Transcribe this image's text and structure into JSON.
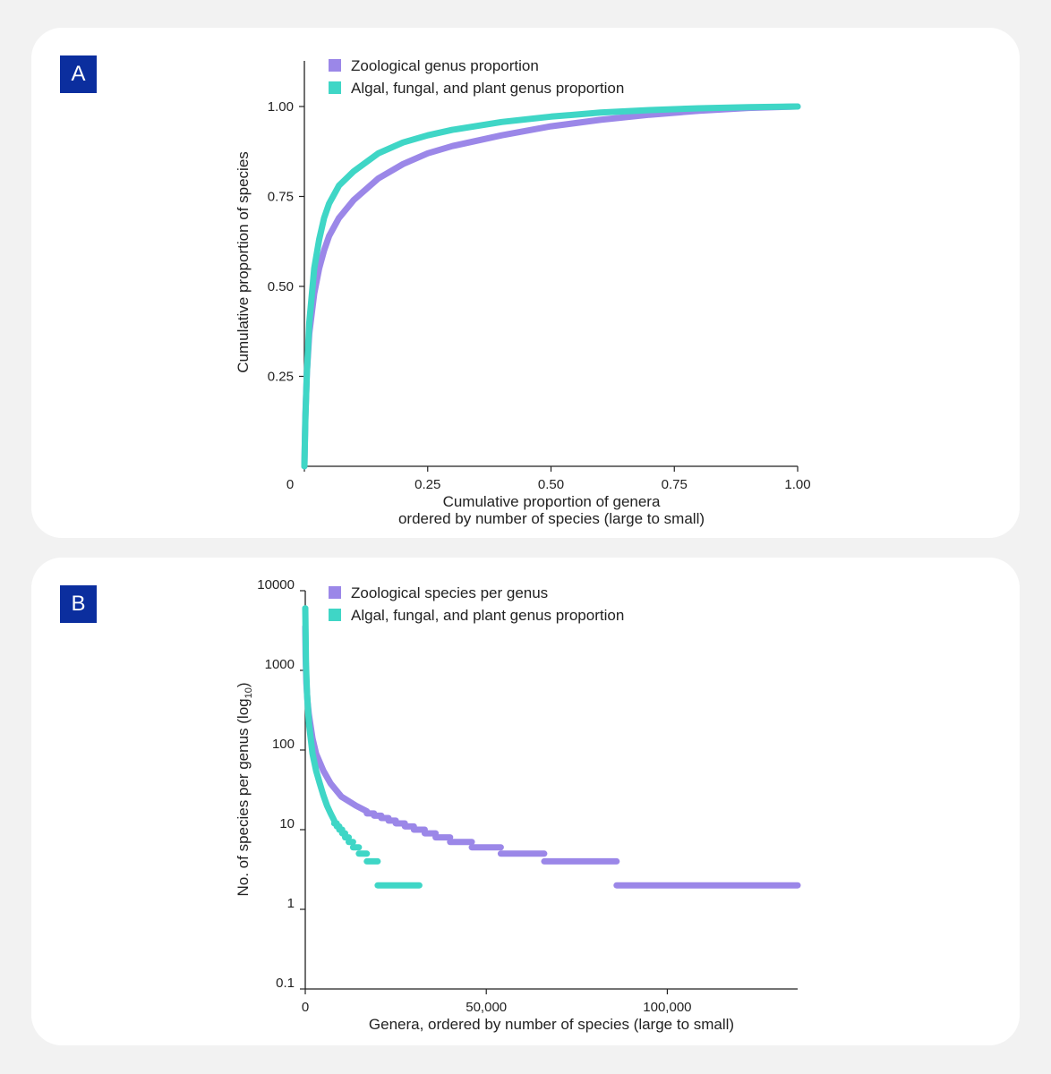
{
  "panels": {
    "a": {
      "label": "A"
    },
    "b": {
      "label": "B"
    }
  },
  "colors": {
    "zoological": "#9b87e8",
    "algal": "#3fd6c6",
    "badge": "#0b2e9e"
  },
  "chart_data": [
    {
      "type": "line",
      "panel": "A",
      "xlabel": "Cumulative proportion of genera",
      "xlabel_line2": "ordered by number of species (large to small)",
      "ylabel": "Cumulative proportion of species",
      "xlim": [
        0,
        1
      ],
      "ylim": [
        0,
        1.1
      ],
      "xticks": [
        0,
        0.25,
        0.5,
        0.75,
        1
      ],
      "xtick_labels": [
        "0",
        "0.25",
        "0.50",
        "0.75",
        "1.00"
      ],
      "yticks": [
        0.25,
        0.5,
        0.75,
        1
      ],
      "ytick_labels": [
        "0.25",
        "0.50",
        "0.75",
        "1.00"
      ],
      "legend_position": "top-left",
      "grid": false,
      "series": [
        {
          "name": "Zoological genus proportion",
          "color": "#9b87e8",
          "x": [
            0,
            0.002,
            0.005,
            0.01,
            0.02,
            0.03,
            0.04,
            0.05,
            0.07,
            0.1,
            0.15,
            0.2,
            0.25,
            0.3,
            0.4,
            0.5,
            0.6,
            0.7,
            0.8,
            0.9,
            1
          ],
          "y": [
            0,
            0.14,
            0.26,
            0.37,
            0.48,
            0.55,
            0.6,
            0.64,
            0.69,
            0.74,
            0.8,
            0.84,
            0.87,
            0.89,
            0.92,
            0.945,
            0.963,
            0.977,
            0.988,
            0.996,
            1
          ]
        },
        {
          "name": "Algal, fungal, and plant genus proportion",
          "color": "#3fd6c6",
          "x": [
            0,
            0.002,
            0.005,
            0.01,
            0.02,
            0.03,
            0.04,
            0.05,
            0.07,
            0.1,
            0.15,
            0.2,
            0.25,
            0.3,
            0.4,
            0.5,
            0.6,
            0.7,
            0.8,
            0.9,
            1
          ],
          "y": [
            0,
            0.13,
            0.26,
            0.4,
            0.55,
            0.63,
            0.69,
            0.73,
            0.78,
            0.82,
            0.87,
            0.9,
            0.92,
            0.935,
            0.957,
            0.972,
            0.983,
            0.99,
            0.995,
            0.998,
            1
          ]
        }
      ]
    },
    {
      "type": "scatter",
      "panel": "B",
      "xlabel": "Genera, ordered by number of species (large to small)",
      "ylabel": "No. of species per genus (log",
      "ylabel_sub": "10",
      "ylabel_end": ")",
      "y_scale": "log",
      "xlim": [
        0,
        136000
      ],
      "ylim": [
        0.1,
        10000
      ],
      "xticks": [
        0,
        50000,
        100000
      ],
      "xtick_labels": [
        "0",
        "50,000",
        "100,000"
      ],
      "yticks": [
        0.1,
        1,
        10,
        100,
        1000,
        10000
      ],
      "ytick_labels": [
        "0.1",
        "1",
        "10",
        "100",
        "1000",
        "10000"
      ],
      "legend_position": "top-left",
      "grid": false,
      "series": [
        {
          "name": "Zoological species per genus",
          "color": "#9b87e8",
          "curve": {
            "x": [
              0,
              100,
              300,
              600,
              1000,
              2000,
              3000,
              5000,
              7000,
              10000,
              14000,
              17000
            ],
            "y": [
              3500,
              1500,
              700,
              420,
              280,
              140,
              90,
              55,
              38,
              26,
              20,
              17
            ]
          },
          "steps": [
            {
              "y": 16,
              "x_start": 17000,
              "x_end": 19000
            },
            {
              "y": 15,
              "x_start": 19000,
              "x_end": 21000
            },
            {
              "y": 14,
              "x_start": 21000,
              "x_end": 23000
            },
            {
              "y": 13,
              "x_start": 23000,
              "x_end": 25000
            },
            {
              "y": 12,
              "x_start": 25000,
              "x_end": 27500
            },
            {
              "y": 11,
              "x_start": 27500,
              "x_end": 30000
            },
            {
              "y": 10,
              "x_start": 30000,
              "x_end": 33000
            },
            {
              "y": 9,
              "x_start": 33000,
              "x_end": 36000
            },
            {
              "y": 8,
              "x_start": 36000,
              "x_end": 40000
            },
            {
              "y": 7,
              "x_start": 40000,
              "x_end": 46000
            },
            {
              "y": 6,
              "x_start": 46000,
              "x_end": 54000
            },
            {
              "y": 5,
              "x_start": 54000,
              "x_end": 66000
            },
            {
              "y": 4,
              "x_start": 66000,
              "x_end": 86000
            },
            {
              "y": 2,
              "x_start": 86000,
              "x_end": 136000
            }
          ]
        },
        {
          "name": "Algal, fungal, and plant genus proportion",
          "color": "#3fd6c6",
          "curve": {
            "x": [
              0,
              200,
              500,
              1000,
              2000,
              3000,
              4000,
              5000,
              6000,
              7000,
              8000
            ],
            "y": [
              6000,
              1200,
              500,
              220,
              90,
              55,
              38,
              27,
              20,
              16,
              13
            ]
          },
          "steps": [
            {
              "y": 12,
              "x_start": 8000,
              "x_end": 8700
            },
            {
              "y": 11,
              "x_start": 8700,
              "x_end": 9400
            },
            {
              "y": 10,
              "x_start": 9400,
              "x_end": 10200
            },
            {
              "y": 9,
              "x_start": 10200,
              "x_end": 11000
            },
            {
              "y": 8,
              "x_start": 11000,
              "x_end": 12000
            },
            {
              "y": 7,
              "x_start": 12000,
              "x_end": 13200
            },
            {
              "y": 6,
              "x_start": 13200,
              "x_end": 14800
            },
            {
              "y": 5,
              "x_start": 14800,
              "x_end": 17000
            },
            {
              "y": 4,
              "x_start": 17000,
              "x_end": 20000
            },
            {
              "y": 2,
              "x_start": 20000,
              "x_end": 31500
            }
          ]
        }
      ]
    }
  ]
}
